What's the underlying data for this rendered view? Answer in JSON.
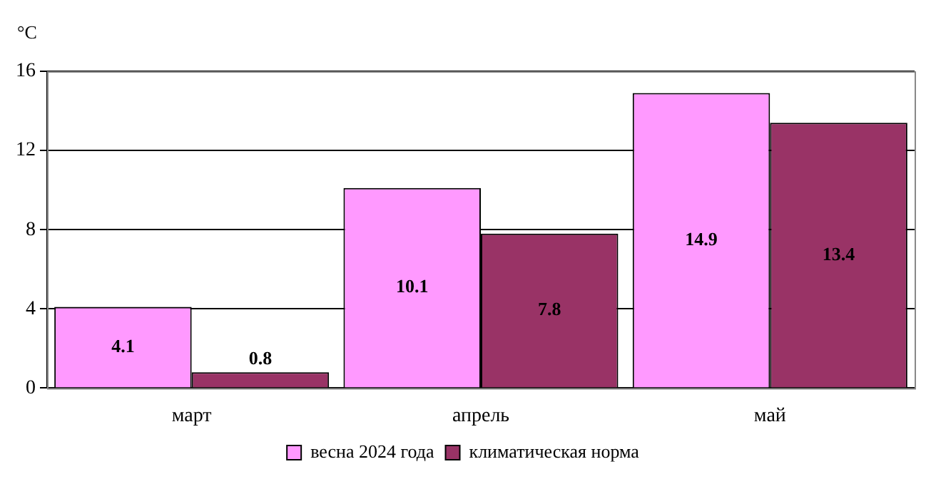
{
  "chart_data": {
    "type": "bar",
    "ylabel": "°C",
    "categories": [
      "март",
      "апрель",
      "май"
    ],
    "series": [
      {
        "name": "весна 2024 года",
        "color": "#ff99ff",
        "values": [
          4.1,
          10.1,
          14.9
        ]
      },
      {
        "name": "климатическая норма",
        "color": "#993366",
        "values": [
          0.8,
          7.8,
          13.4
        ]
      }
    ],
    "ylim": [
      0,
      16
    ],
    "yticks": [
      0,
      4,
      8,
      12,
      16
    ],
    "grid": "y",
    "legend": "bottom",
    "data_labels": true
  }
}
